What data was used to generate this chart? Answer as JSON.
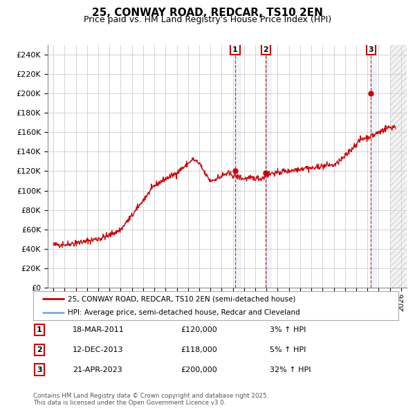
{
  "title": "25, CONWAY ROAD, REDCAR, TS10 2EN",
  "subtitle": "Price paid vs. HM Land Registry's House Price Index (HPI)",
  "legend_line1": "25, CONWAY ROAD, REDCAR, TS10 2EN (semi-detached house)",
  "legend_line2": "HPI: Average price, semi-detached house, Redcar and Cleveland",
  "footer": "Contains HM Land Registry data © Crown copyright and database right 2025.\nThis data is licensed under the Open Government Licence v3.0.",
  "transactions": [
    {
      "num": 1,
      "date": "18-MAR-2011",
      "price": 120000,
      "pct": "3%",
      "dir": "↑",
      "ref": "HPI"
    },
    {
      "num": 2,
      "date": "12-DEC-2013",
      "price": 118000,
      "pct": "5%",
      "dir": "↑",
      "ref": "HPI"
    },
    {
      "num": 3,
      "date": "21-APR-2023",
      "price": 200000,
      "pct": "32%",
      "dir": "↑",
      "ref": "HPI"
    }
  ],
  "vline_dates": [
    2011.208,
    2013.942,
    2023.302
  ],
  "vline_prices": [
    120000,
    118000,
    200000
  ],
  "hpi_color": "#7aaadd",
  "price_color": "#cc0000",
  "bg_color": "#ffffff",
  "grid_color": "#cccccc",
  "ylim": [
    0,
    250000
  ],
  "yticks": [
    0,
    20000,
    40000,
    60000,
    80000,
    100000,
    120000,
    140000,
    160000,
    180000,
    200000,
    220000,
    240000
  ],
  "xlim_start": 1994.5,
  "xlim_end": 2026.5,
  "hpi_key_points": [
    [
      1995.0,
      44000
    ],
    [
      1996.0,
      44500
    ],
    [
      1997.0,
      46000
    ],
    [
      1998.0,
      48000
    ],
    [
      1999.0,
      50000
    ],
    [
      2000.0,
      54000
    ],
    [
      2001.0,
      60000
    ],
    [
      2002.0,
      74000
    ],
    [
      2003.0,
      90000
    ],
    [
      2004.0,
      105000
    ],
    [
      2005.0,
      112000
    ],
    [
      2006.0,
      118000
    ],
    [
      2007.0,
      128000
    ],
    [
      2007.5,
      132000
    ],
    [
      2008.0,
      128000
    ],
    [
      2008.5,
      118000
    ],
    [
      2009.0,
      110000
    ],
    [
      2009.5,
      112000
    ],
    [
      2010.0,
      115000
    ],
    [
      2010.5,
      118000
    ],
    [
      2011.0,
      116000
    ],
    [
      2011.5,
      114000
    ],
    [
      2012.0,
      112000
    ],
    [
      2012.5,
      113000
    ],
    [
      2013.0,
      113000
    ],
    [
      2013.5,
      112000
    ],
    [
      2014.0,
      116000
    ],
    [
      2014.5,
      118000
    ],
    [
      2015.0,
      118000
    ],
    [
      2015.5,
      120000
    ],
    [
      2016.0,
      120000
    ],
    [
      2016.5,
      122000
    ],
    [
      2017.0,
      122000
    ],
    [
      2017.5,
      124000
    ],
    [
      2018.0,
      123000
    ],
    [
      2018.5,
      124000
    ],
    [
      2019.0,
      125000
    ],
    [
      2019.5,
      126000
    ],
    [
      2020.0,
      126000
    ],
    [
      2020.5,
      130000
    ],
    [
      2021.0,
      135000
    ],
    [
      2021.5,
      142000
    ],
    [
      2022.0,
      148000
    ],
    [
      2022.5,
      153000
    ],
    [
      2023.0,
      155000
    ],
    [
      2023.5,
      157000
    ],
    [
      2024.0,
      160000
    ],
    [
      2024.5,
      163000
    ],
    [
      2025.0,
      165000
    ],
    [
      2025.5,
      166000
    ]
  ]
}
